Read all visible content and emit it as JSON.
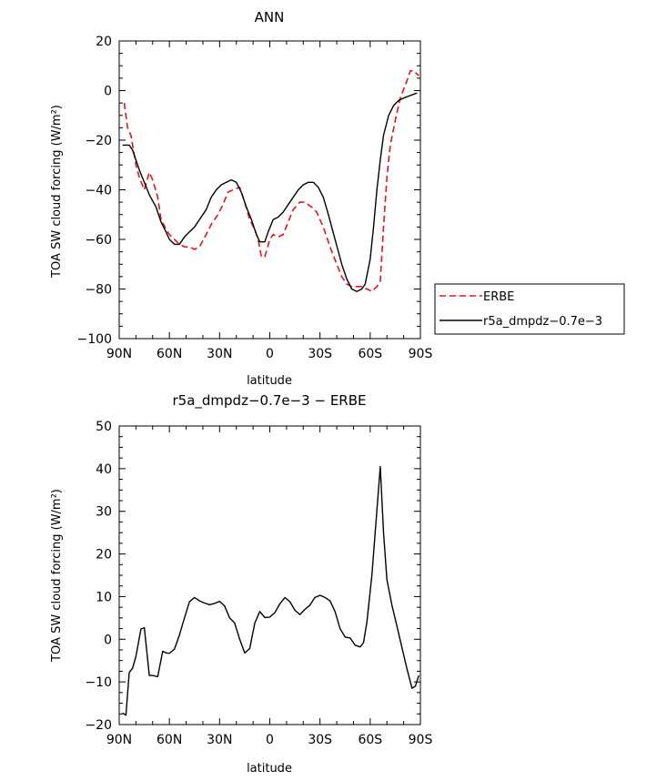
{
  "chart_data": [
    {
      "type": "line",
      "title": "ANN",
      "xlabel": "latitude",
      "ylabel": "TOA SW cloud forcing (W/m²)",
      "xlim": [
        90,
        -90
      ],
      "ylim": [
        -100,
        20
      ],
      "x_ticks": [
        90,
        60,
        30,
        0,
        -30,
        -60,
        -90
      ],
      "x_tick_labels": [
        "90N",
        "60N",
        "30N",
        "0",
        "30S",
        "60S",
        "90S"
      ],
      "y_ticks": [
        -100,
        -80,
        -60,
        -40,
        -20,
        0,
        20
      ],
      "y_tick_labels": [
        "−100",
        "−80",
        "−60",
        "−40",
        "−20",
        "0",
        "20"
      ],
      "legend": "right",
      "series": [
        {
          "name": "ERBE",
          "color": "#e8131f",
          "style": "dashed",
          "points": [
            [
              87,
              -5
            ],
            [
              85,
              -15
            ],
            [
              83,
              -18
            ],
            [
              80,
              -30
            ],
            [
              78,
              -35
            ],
            [
              75,
              -40
            ],
            [
              72,
              -33
            ],
            [
              70,
              -36
            ],
            [
              67,
              -43
            ],
            [
              65,
              -52
            ],
            [
              62,
              -56
            ],
            [
              60,
              -58
            ],
            [
              57,
              -60
            ],
            [
              54,
              -62
            ],
            [
              51,
              -63
            ],
            [
              48,
              -63
            ],
            [
              45,
              -64
            ],
            [
              42,
              -63
            ],
            [
              38,
              -58
            ],
            [
              35,
              -54
            ],
            [
              31,
              -50
            ],
            [
              28,
              -46
            ],
            [
              25,
              -41
            ],
            [
              22,
              -40
            ],
            [
              18,
              -39
            ],
            [
              15,
              -45
            ],
            [
              12,
              -52
            ],
            [
              9,
              -56
            ],
            [
              7,
              -60
            ],
            [
              5,
              -67
            ],
            [
              3,
              -67
            ],
            [
              0,
              -60
            ],
            [
              -2,
              -58
            ],
            [
              -5,
              -59
            ],
            [
              -8,
              -58
            ],
            [
              -11,
              -53
            ],
            [
              -14,
              -48
            ],
            [
              -18,
              -45
            ],
            [
              -21,
              -45
            ],
            [
              -25,
              -47
            ],
            [
              -28,
              -49
            ],
            [
              -32,
              -55
            ],
            [
              -36,
              -63
            ],
            [
              -40,
              -70
            ],
            [
              -43,
              -75
            ],
            [
              -46,
              -78
            ],
            [
              -49,
              -79
            ],
            [
              -52,
              -79
            ],
            [
              -55,
              -79
            ],
            [
              -58,
              -80
            ],
            [
              -61,
              -81
            ],
            [
              -64,
              -79
            ],
            [
              -66,
              -77
            ],
            [
              -68,
              -55
            ],
            [
              -70,
              -35
            ],
            [
              -72,
              -22
            ],
            [
              -75,
              -12
            ],
            [
              -78,
              -3
            ],
            [
              -82,
              4
            ],
            [
              -84,
              8
            ],
            [
              -86,
              8
            ],
            [
              -89,
              6
            ]
          ]
        },
        {
          "name": "r5a_dmpdz−0.7e−3",
          "color": "#000000",
          "style": "solid",
          "points": [
            [
              88,
              -22
            ],
            [
              86,
              -22
            ],
            [
              84,
              -22
            ],
            [
              82,
              -24
            ],
            [
              80,
              -28
            ],
            [
              78,
              -32
            ],
            [
              75,
              -37
            ],
            [
              72,
              -42
            ],
            [
              68,
              -47
            ],
            [
              65,
              -53
            ],
            [
              62,
              -57
            ],
            [
              60,
              -60
            ],
            [
              57,
              -62
            ],
            [
              54,
              -62
            ],
            [
              51,
              -59
            ],
            [
              48,
              -57
            ],
            [
              45,
              -55
            ],
            [
              42,
              -52
            ],
            [
              38,
              -48
            ],
            [
              35,
              -43
            ],
            [
              32,
              -40
            ],
            [
              29,
              -38
            ],
            [
              26,
              -37
            ],
            [
              23,
              -36
            ],
            [
              20,
              -37
            ],
            [
              17,
              -41
            ],
            [
              14,
              -47
            ],
            [
              11,
              -52
            ],
            [
              8,
              -58
            ],
            [
              6,
              -61
            ],
            [
              3,
              -61
            ],
            [
              1,
              -57
            ],
            [
              -2,
              -52
            ],
            [
              -5,
              -51
            ],
            [
              -8,
              -49
            ],
            [
              -11,
              -46
            ],
            [
              -14,
              -43
            ],
            [
              -17,
              -40
            ],
            [
              -20,
              -38
            ],
            [
              -23,
              -37
            ],
            [
              -26,
              -37
            ],
            [
              -29,
              -39
            ],
            [
              -32,
              -43
            ],
            [
              -35,
              -50
            ],
            [
              -39,
              -60
            ],
            [
              -43,
              -70
            ],
            [
              -46,
              -76
            ],
            [
              -49,
              -80
            ],
            [
              -52,
              -81
            ],
            [
              -55,
              -80
            ],
            [
              -57,
              -78
            ],
            [
              -60,
              -68
            ],
            [
              -62,
              -55
            ],
            [
              -64,
              -40
            ],
            [
              -66,
              -28
            ],
            [
              -68,
              -18
            ],
            [
              -71,
              -10
            ],
            [
              -74,
              -6
            ],
            [
              -77,
              -4
            ],
            [
              -80,
              -3
            ],
            [
              -84,
              -2
            ],
            [
              -88,
              -1
            ]
          ]
        }
      ]
    },
    {
      "type": "line",
      "title": "r5a_dmpdz−0.7e−3 − ERBE",
      "xlabel": "latitude",
      "ylabel": "TOA SW cloud forcing (W/m²)",
      "xlim": [
        90,
        -90
      ],
      "ylim": [
        -20,
        50
      ],
      "x_ticks": [
        90,
        60,
        30,
        0,
        -30,
        -60,
        -90
      ],
      "x_tick_labels": [
        "90N",
        "60N",
        "30N",
        "0",
        "30S",
        "60S",
        "90S"
      ],
      "y_ticks": [
        -20,
        -10,
        0,
        10,
        20,
        30,
        40,
        50
      ],
      "y_tick_labels": [
        "−20",
        "−10",
        "0",
        "10",
        "20",
        "30",
        "40",
        "50"
      ],
      "series": [
        {
          "name": "",
          "color": "#000000",
          "style": "solid",
          "points": [
            [
              88,
              -17.3
            ],
            [
              86,
              -17.8
            ],
            [
              84,
              -7.8
            ],
            [
              82,
              -6.8
            ],
            [
              80,
              -4
            ],
            [
              77,
              2.4
            ],
            [
              75,
              2.7
            ],
            [
              72,
              -8.5
            ],
            [
              70,
              -8.5
            ],
            [
              67,
              -8.8
            ],
            [
              64,
              -2.8
            ],
            [
              62,
              -3.2
            ],
            [
              60,
              -3.3
            ],
            [
              57,
              -2.3
            ],
            [
              54,
              1
            ],
            [
              51,
              5
            ],
            [
              48,
              8.8
            ],
            [
              45,
              9.8
            ],
            [
              42,
              9
            ],
            [
              39,
              8.5
            ],
            [
              36,
              8.1
            ],
            [
              33,
              8.4
            ],
            [
              30,
              8.9
            ],
            [
              27,
              7.8
            ],
            [
              24,
              5
            ],
            [
              21,
              3.8
            ],
            [
              18,
              0
            ],
            [
              15,
              -3.2
            ],
            [
              12,
              -2.2
            ],
            [
              9,
              3.8
            ],
            [
              6,
              6.5
            ],
            [
              3,
              5.1
            ],
            [
              0,
              5.2
            ],
            [
              -3,
              6.2
            ],
            [
              -6,
              8.3
            ],
            [
              -9,
              9.8
            ],
            [
              -12,
              8.8
            ],
            [
              -15,
              6.8
            ],
            [
              -18,
              5.8
            ],
            [
              -21,
              7
            ],
            [
              -24,
              8
            ],
            [
              -27,
              9.8
            ],
            [
              -30,
              10.3
            ],
            [
              -33,
              9.8
            ],
            [
              -36,
              9
            ],
            [
              -39,
              6.5
            ],
            [
              -42,
              2.5
            ],
            [
              -45,
              0.5
            ],
            [
              -48,
              0.3
            ],
            [
              -51,
              -1.4
            ],
            [
              -54,
              -1.8
            ],
            [
              -56,
              -0.8
            ],
            [
              -58,
              4
            ],
            [
              -61,
              15
            ],
            [
              -63,
              25
            ],
            [
              -66,
              40.5
            ],
            [
              -68,
              25
            ],
            [
              -70,
              14
            ],
            [
              -73,
              8
            ],
            [
              -76,
              3
            ],
            [
              -79,
              -2
            ],
            [
              -82,
              -7
            ],
            [
              -85,
              -11.5
            ],
            [
              -87,
              -11
            ],
            [
              -89,
              -8.5
            ]
          ]
        }
      ]
    }
  ]
}
